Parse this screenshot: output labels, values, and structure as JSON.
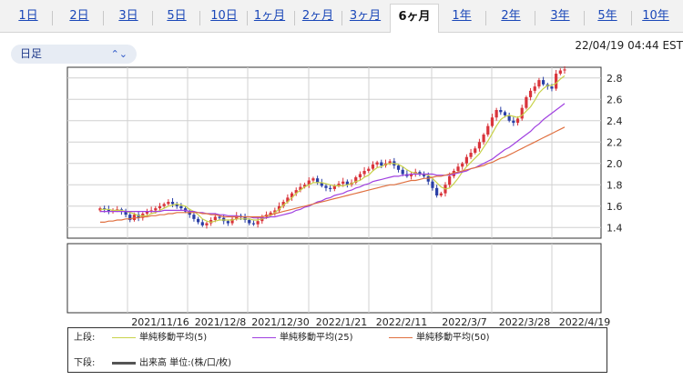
{
  "tabs": [
    {
      "label": "1日",
      "active": false
    },
    {
      "label": "2日",
      "active": false
    },
    {
      "label": "3日",
      "active": false
    },
    {
      "label": "5日",
      "active": false
    },
    {
      "label": "10日",
      "active": false
    },
    {
      "label": "1ヶ月",
      "active": false
    },
    {
      "label": "2ヶ月",
      "active": false
    },
    {
      "label": "3ヶ月",
      "active": false
    },
    {
      "label": "6ヶ月",
      "active": true
    },
    {
      "label": "1年",
      "active": false
    },
    {
      "label": "2年",
      "active": false
    },
    {
      "label": "3年",
      "active": false
    },
    {
      "label": "5年",
      "active": false
    },
    {
      "label": "10年",
      "active": false
    }
  ],
  "selector": {
    "label": "日足",
    "icon": "chevron-updown-icon"
  },
  "timestamp": "22/04/19 04:44 EST",
  "legend": {
    "upper_label": "上段:",
    "lower_label": "下段:",
    "items": [
      {
        "name": "単純移動平均(5)",
        "color": "#c8d24a"
      },
      {
        "name": "単純移動平均(25)",
        "color": "#a040e0"
      },
      {
        "name": "単純移動平均(50)",
        "color": "#e07040"
      }
    ],
    "volume_text": "出来高 単位:(株/口/枚)",
    "volume_color": "#555555"
  },
  "colors": {
    "up": "#d9343b",
    "down": "#2a3fa6",
    "grid": "#d0d0d0",
    "frame": "#333333"
  },
  "chart_data": {
    "type": "candlestick",
    "x_tick_labels": [
      "2021/11/16",
      "2021/12/8",
      "2021/12/30",
      "2022/1/21",
      "2022/2/11",
      "2022/3/7",
      "2022/3/28",
      "2022/4/19"
    ],
    "y_ticks": [
      "1.4",
      "1.6",
      "1.8",
      "2.0",
      "2.2",
      "2.4",
      "2.6",
      "2.8"
    ],
    "ylim": [
      1.3,
      2.9
    ],
    "close": [
      1.58,
      1.57,
      1.55,
      1.56,
      1.57,
      1.55,
      1.52,
      1.47,
      1.52,
      1.49,
      1.53,
      1.55,
      1.56,
      1.58,
      1.6,
      1.62,
      1.64,
      1.62,
      1.6,
      1.58,
      1.55,
      1.52,
      1.48,
      1.45,
      1.42,
      1.44,
      1.47,
      1.5,
      1.49,
      1.46,
      1.44,
      1.48,
      1.51,
      1.5,
      1.47,
      1.44,
      1.43,
      1.46,
      1.5,
      1.52,
      1.54,
      1.56,
      1.6,
      1.64,
      1.68,
      1.72,
      1.75,
      1.78,
      1.8,
      1.84,
      1.86,
      1.82,
      1.79,
      1.77,
      1.76,
      1.79,
      1.81,
      1.83,
      1.8,
      1.82,
      1.87,
      1.9,
      1.93,
      1.95,
      1.99,
      2.01,
      1.98,
      2.0,
      2.02,
      1.98,
      1.94,
      1.9,
      1.88,
      1.9,
      1.92,
      1.9,
      1.88,
      1.83,
      1.77,
      1.7,
      1.72,
      1.8,
      1.88,
      1.93,
      1.97,
      2.0,
      2.06,
      2.1,
      2.14,
      2.2,
      2.27,
      2.35,
      2.43,
      2.5,
      2.48,
      2.45,
      2.4,
      2.38,
      2.42,
      2.52,
      2.62,
      2.68,
      2.72,
      2.78,
      2.74,
      2.72,
      2.7,
      2.84,
      2.87,
      2.88
    ],
    "sma5": [
      1.57,
      1.57,
      1.57,
      1.56,
      1.56,
      1.56,
      1.55,
      1.54,
      1.53,
      1.51,
      1.51,
      1.51,
      1.53,
      1.54,
      1.56,
      1.58,
      1.6,
      1.61,
      1.62,
      1.61,
      1.6,
      1.57,
      1.55,
      1.52,
      1.48,
      1.46,
      1.45,
      1.46,
      1.47,
      1.47,
      1.47,
      1.47,
      1.48,
      1.48,
      1.48,
      1.48,
      1.47,
      1.47,
      1.48,
      1.49,
      1.51,
      1.54,
      1.57,
      1.61,
      1.64,
      1.68,
      1.72,
      1.75,
      1.78,
      1.8,
      1.82,
      1.82,
      1.82,
      1.81,
      1.8,
      1.79,
      1.79,
      1.79,
      1.8,
      1.81,
      1.83,
      1.84,
      1.87,
      1.89,
      1.93,
      1.96,
      1.97,
      1.99,
      2.0,
      2.0,
      1.99,
      1.97,
      1.94,
      1.92,
      1.91,
      1.9,
      1.9,
      1.89,
      1.86,
      1.82,
      1.78,
      1.76,
      1.77,
      1.81,
      1.86,
      1.92,
      1.97,
      2.01,
      2.05,
      2.09,
      2.15,
      2.21,
      2.28,
      2.35,
      2.41,
      2.44,
      2.45,
      2.44,
      2.43,
      2.45,
      2.49,
      2.53,
      2.59,
      2.66,
      2.7,
      2.73,
      2.73,
      2.75,
      2.79,
      2.82
    ],
    "sma25": [
      1.55,
      1.55,
      1.55,
      1.55,
      1.55,
      1.55,
      1.55,
      1.55,
      1.55,
      1.55,
      1.55,
      1.55,
      1.55,
      1.55,
      1.55,
      1.56,
      1.56,
      1.56,
      1.56,
      1.56,
      1.56,
      1.55,
      1.55,
      1.54,
      1.54,
      1.53,
      1.53,
      1.53,
      1.52,
      1.52,
      1.51,
      1.51,
      1.51,
      1.5,
      1.5,
      1.5,
      1.49,
      1.49,
      1.49,
      1.49,
      1.5,
      1.5,
      1.51,
      1.52,
      1.53,
      1.54,
      1.56,
      1.57,
      1.59,
      1.6,
      1.62,
      1.64,
      1.65,
      1.67,
      1.68,
      1.7,
      1.71,
      1.72,
      1.74,
      1.75,
      1.77,
      1.78,
      1.8,
      1.81,
      1.83,
      1.84,
      1.85,
      1.86,
      1.87,
      1.88,
      1.88,
      1.89,
      1.89,
      1.9,
      1.9,
      1.9,
      1.9,
      1.9,
      1.9,
      1.89,
      1.89,
      1.89,
      1.89,
      1.9,
      1.91,
      1.92,
      1.93,
      1.95,
      1.96,
      1.98,
      2.0,
      2.02,
      2.04,
      2.07,
      2.1,
      2.13,
      2.15,
      2.18,
      2.21,
      2.24,
      2.27,
      2.3,
      2.34,
      2.37,
      2.41,
      2.44,
      2.47,
      2.5,
      2.53,
      2.56
    ],
    "sma50": [
      1.45,
      1.45,
      1.46,
      1.46,
      1.47,
      1.47,
      1.48,
      1.48,
      1.49,
      1.49,
      1.5,
      1.5,
      1.51,
      1.51,
      1.52,
      1.52,
      1.53,
      1.53,
      1.54,
      1.54,
      1.54,
      1.54,
      1.54,
      1.54,
      1.53,
      1.53,
      1.52,
      1.52,
      1.51,
      1.5,
      1.5,
      1.5,
      1.5,
      1.5,
      1.5,
      1.5,
      1.5,
      1.5,
      1.5,
      1.51,
      1.52,
      1.53,
      1.54,
      1.55,
      1.56,
      1.57,
      1.58,
      1.59,
      1.6,
      1.61,
      1.62,
      1.63,
      1.64,
      1.65,
      1.66,
      1.67,
      1.68,
      1.69,
      1.7,
      1.71,
      1.72,
      1.73,
      1.74,
      1.75,
      1.76,
      1.77,
      1.78,
      1.79,
      1.8,
      1.8,
      1.81,
      1.82,
      1.83,
      1.84,
      1.84,
      1.85,
      1.86,
      1.86,
      1.87,
      1.88,
      1.88,
      1.89,
      1.9,
      1.91,
      1.92,
      1.93,
      1.94,
      1.95,
      1.96,
      1.97,
      1.98,
      2.0,
      2.01,
      2.03,
      2.05,
      2.06,
      2.08,
      2.1,
      2.12,
      2.14,
      2.16,
      2.18,
      2.2,
      2.22,
      2.24,
      2.26,
      2.28,
      2.3,
      2.32,
      2.34
    ],
    "lower_panel": {
      "series": "出来高",
      "values": []
    }
  }
}
